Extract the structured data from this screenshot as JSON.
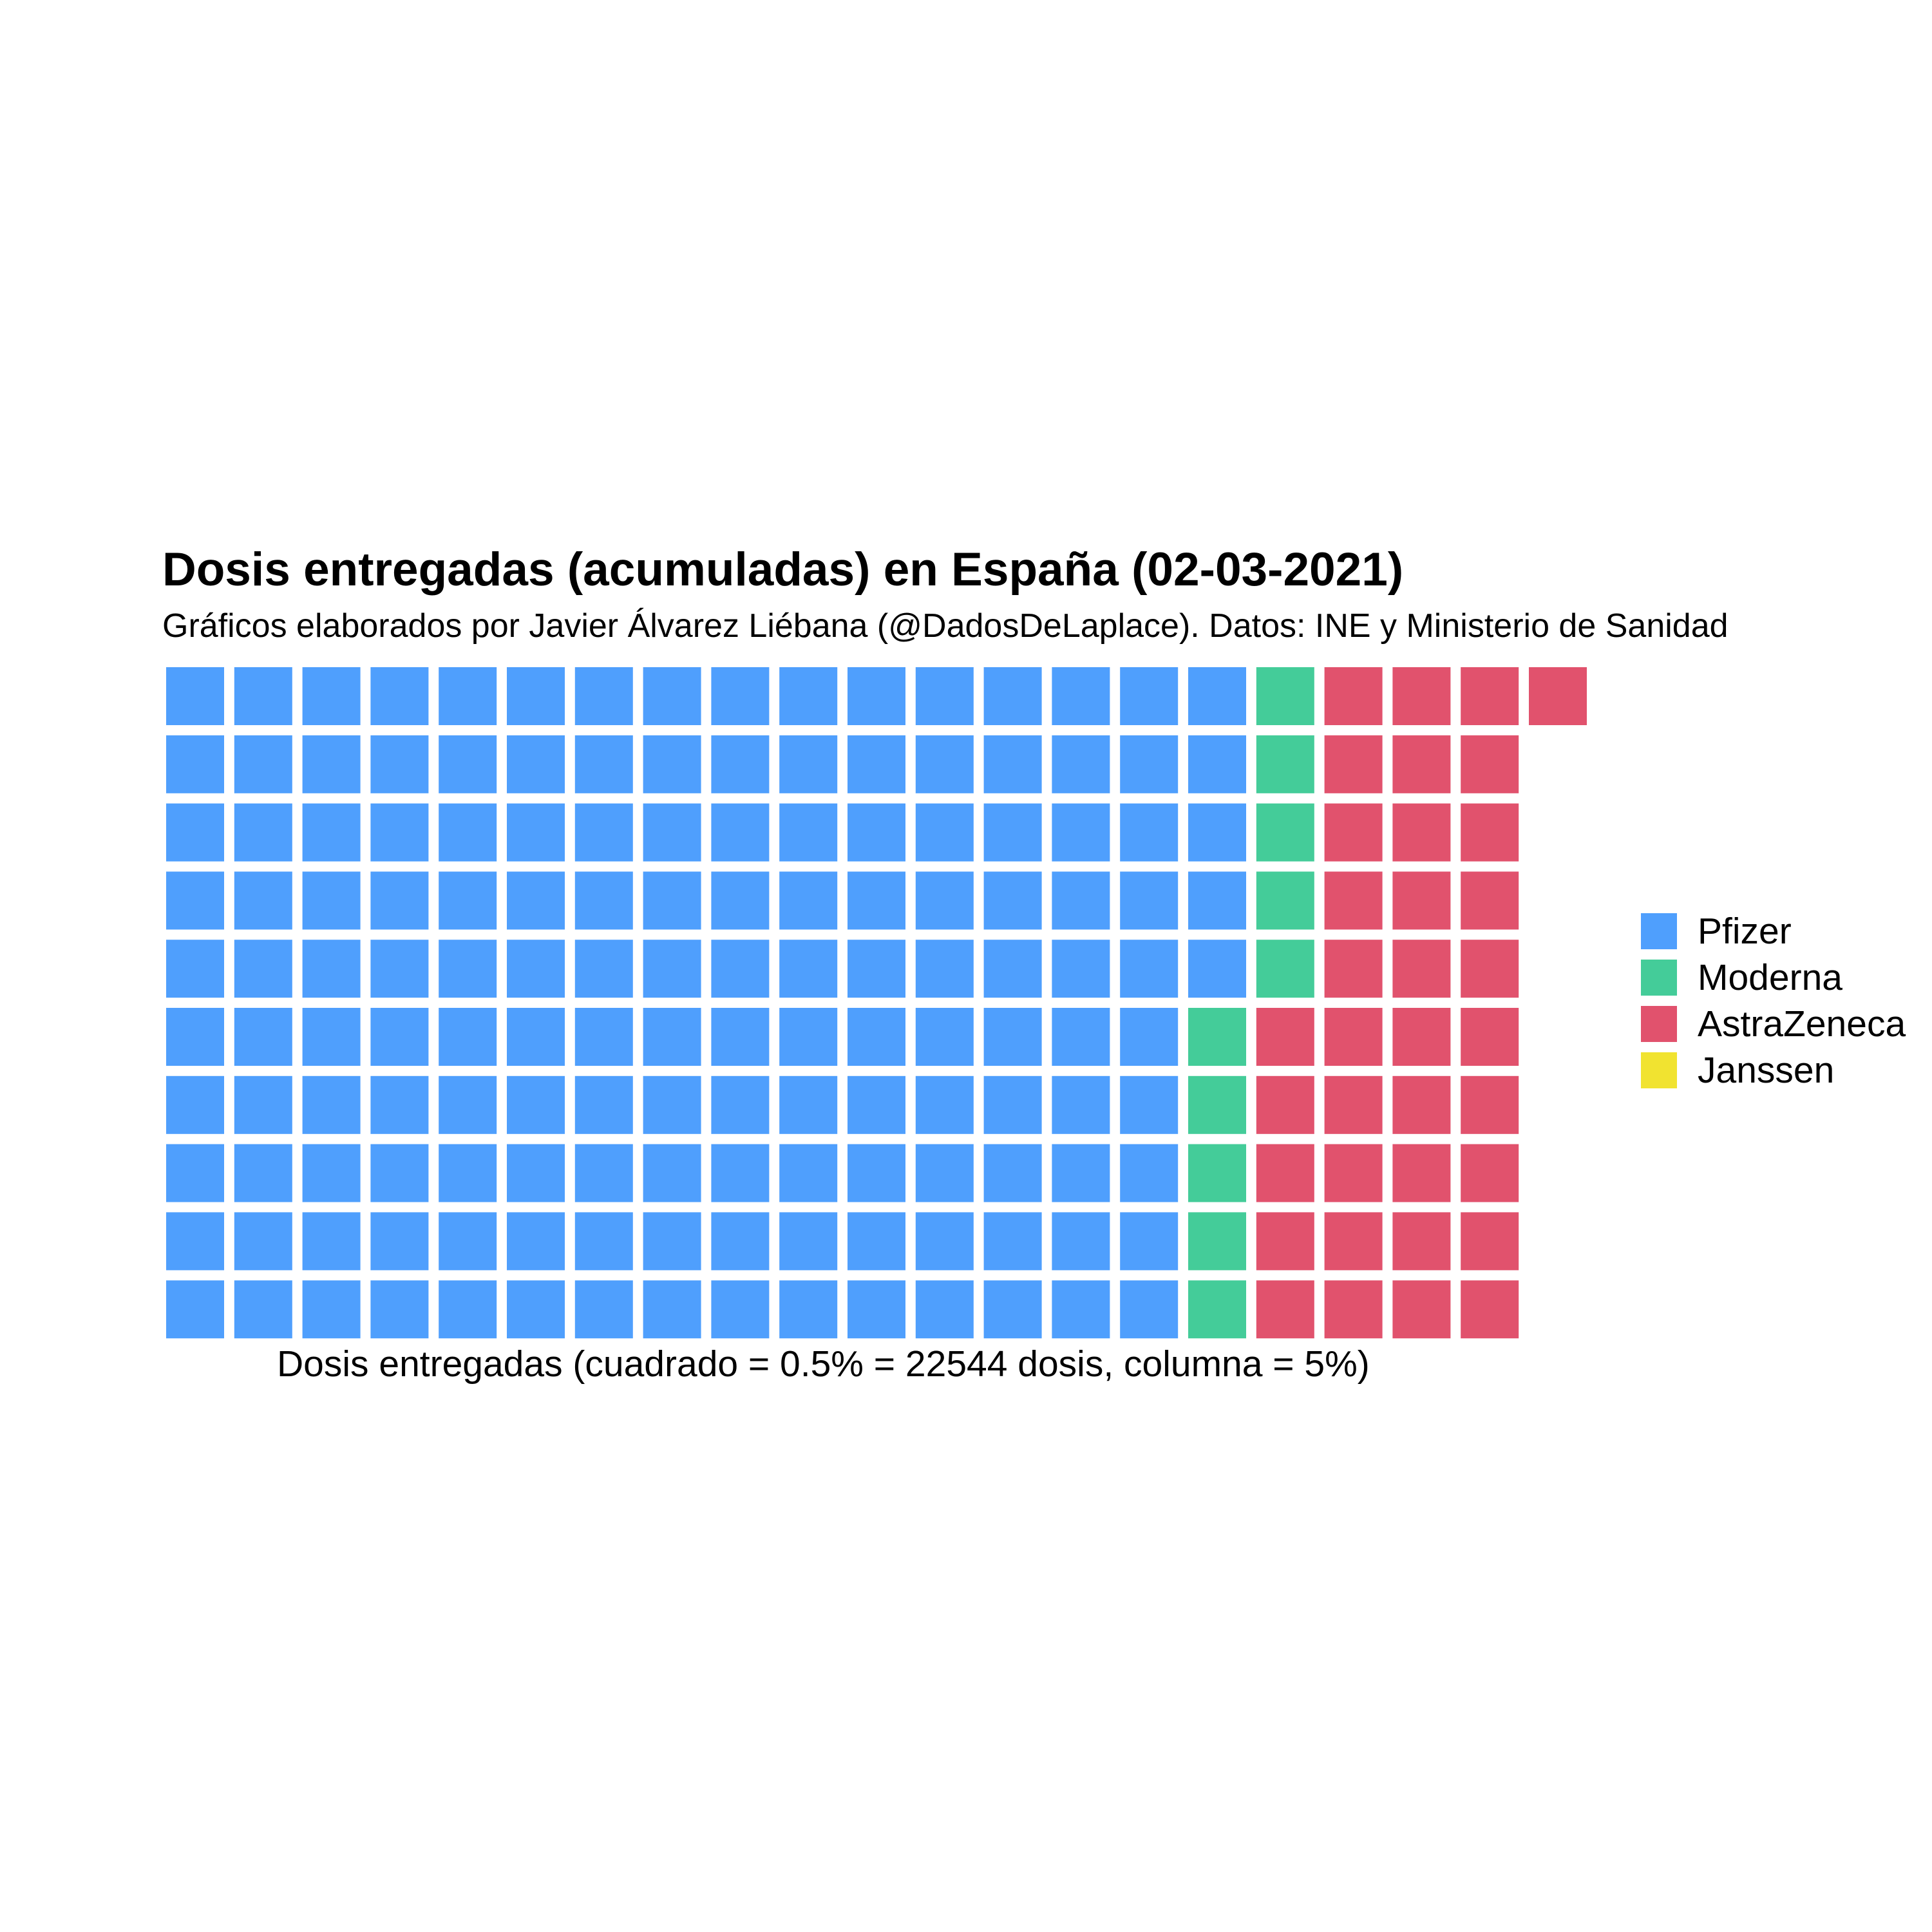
{
  "chart_data": {
    "type": "waffle",
    "title": "Dosis entregadas (acumuladas) en España (02-03-2021)",
    "subtitle": "Gráficos elaborados por Javier Álvarez Liébana (@DadosDeLaplace). Datos: INE y Ministerio de Sanidad",
    "xlabel": "Dosis entregadas (cuadrado = 0.5% = 22544 dosis, columna = 5%)",
    "rows": 10,
    "columns": 21,
    "legend_position": "right",
    "series": [
      {
        "name": "Pfizer",
        "squares": 155,
        "color": "#4f9ffd"
      },
      {
        "name": "Moderna",
        "squares": 10,
        "color": "#44cc99"
      },
      {
        "name": "AstraZeneca",
        "squares": 36,
        "color": "#e1526d"
      },
      {
        "name": "Janssen",
        "squares": 0,
        "color": "#f1e330"
      }
    ]
  }
}
